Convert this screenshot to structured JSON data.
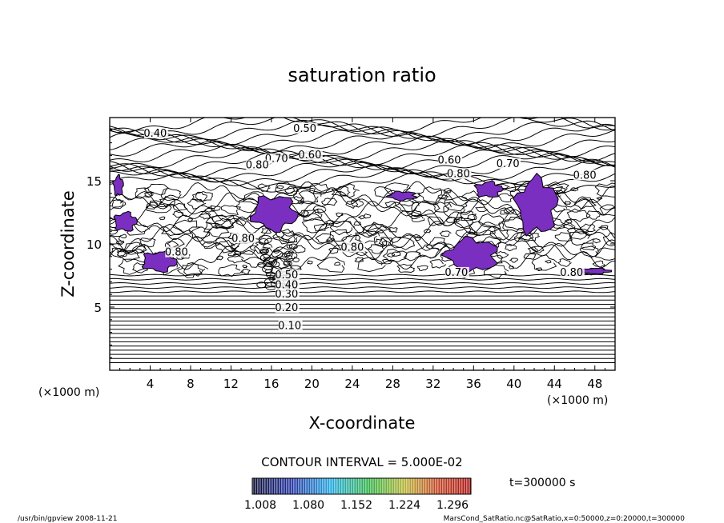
{
  "chart_data": {
    "type": "contour",
    "title": "saturation ratio",
    "xlabel": "X-coordinate",
    "ylabel": "Z-coordinate",
    "x_unit": "(×1000 m)",
    "y_unit": "(×1000 m)",
    "xlim": [
      0,
      50
    ],
    "ylim": [
      0,
      20
    ],
    "x_ticks": [
      4,
      8,
      12,
      16,
      20,
      24,
      28,
      32,
      36,
      40,
      44,
      48
    ],
    "y_ticks": [
      5,
      10,
      15
    ],
    "x_tick_labels": [
      "4",
      "8",
      "12",
      "16",
      "20",
      "24",
      "28",
      "32",
      "36",
      "40",
      "44",
      "48"
    ],
    "y_tick_labels": [
      "5",
      "10",
      "15"
    ],
    "contour_interval_text": "CONTOUR INTERVAL = 5.000E-02",
    "contour_labels": [
      {
        "text": "0.10",
        "x": 17.8,
        "z": 3.4
      },
      {
        "text": "0.20",
        "x": 17.5,
        "z": 4.8
      },
      {
        "text": "0.30",
        "x": 17.5,
        "z": 5.9
      },
      {
        "text": "0.40",
        "x": 17.5,
        "z": 6.6
      },
      {
        "text": "0.50",
        "x": 17.5,
        "z": 7.4
      },
      {
        "text": "0.40",
        "x": 4.5,
        "z": 18.6
      },
      {
        "text": "0.50",
        "x": 19.3,
        "z": 19.0
      },
      {
        "text": "0.70",
        "x": 16.5,
        "z": 16.6
      },
      {
        "text": "0.80",
        "x": 14.6,
        "z": 16.1
      },
      {
        "text": "0.60",
        "x": 19.8,
        "z": 16.9
      },
      {
        "text": "0.60",
        "x": 33.6,
        "z": 16.5
      },
      {
        "text": "0.80",
        "x": 34.5,
        "z": 15.4
      },
      {
        "text": "0.70",
        "x": 39.4,
        "z": 16.2
      },
      {
        "text": "0.80",
        "x": 47.0,
        "z": 15.3
      },
      {
        "text": "0.80",
        "x": 6.6,
        "z": 9.2
      },
      {
        "text": "0.80",
        "x": 13.2,
        "z": 10.3
      },
      {
        "text": "0.80",
        "x": 24.0,
        "z": 9.6
      },
      {
        "text": "0.70",
        "x": 34.3,
        "z": 7.6
      },
      {
        "text": "0.80",
        "x": 45.7,
        "z": 7.6
      }
    ],
    "supersaturated_regions": [
      {
        "x": [
          0.3,
          1.4
        ],
        "z": [
          13.7,
          15.5
        ]
      },
      {
        "x": [
          0.3,
          2.8
        ],
        "z": [
          10.9,
          12.6
        ]
      },
      {
        "x": [
          3.0,
          6.8
        ],
        "z": [
          7.7,
          9.5
        ]
      },
      {
        "x": [
          13.8,
          18.8
        ],
        "z": [
          10.9,
          14.0
        ]
      },
      {
        "x": [
          27.4,
          30.5
        ],
        "z": [
          13.4,
          14.2
        ]
      },
      {
        "x": [
          33.0,
          38.7
        ],
        "z": [
          7.6,
          10.6
        ]
      },
      {
        "x": [
          40.0,
          44.5
        ],
        "z": [
          10.5,
          15.5
        ]
      },
      {
        "x": [
          36.0,
          39.0
        ],
        "z": [
          13.6,
          15.0
        ]
      },
      {
        "x": [
          46.0,
          49.8
        ],
        "z": [
          7.6,
          8.1
        ]
      }
    ],
    "colorbar": {
      "tick_labels": [
        "1.008",
        "1.080",
        "1.152",
        "1.224",
        "1.296"
      ],
      "colors": [
        "#101040",
        "#1f2f9e",
        "#1aa8e0",
        "#2fb24a",
        "#c0b030",
        "#c04020",
        "#b01818"
      ]
    },
    "time_text": "t=300000 s",
    "fill_color": "#7a2fc0"
  },
  "footer": {
    "left": "/usr/bin/gpview   2008-11-21",
    "right": "MarsCond_SatRatio.nc@SatRatio,x=0:50000,z=0:20000,t=300000"
  }
}
